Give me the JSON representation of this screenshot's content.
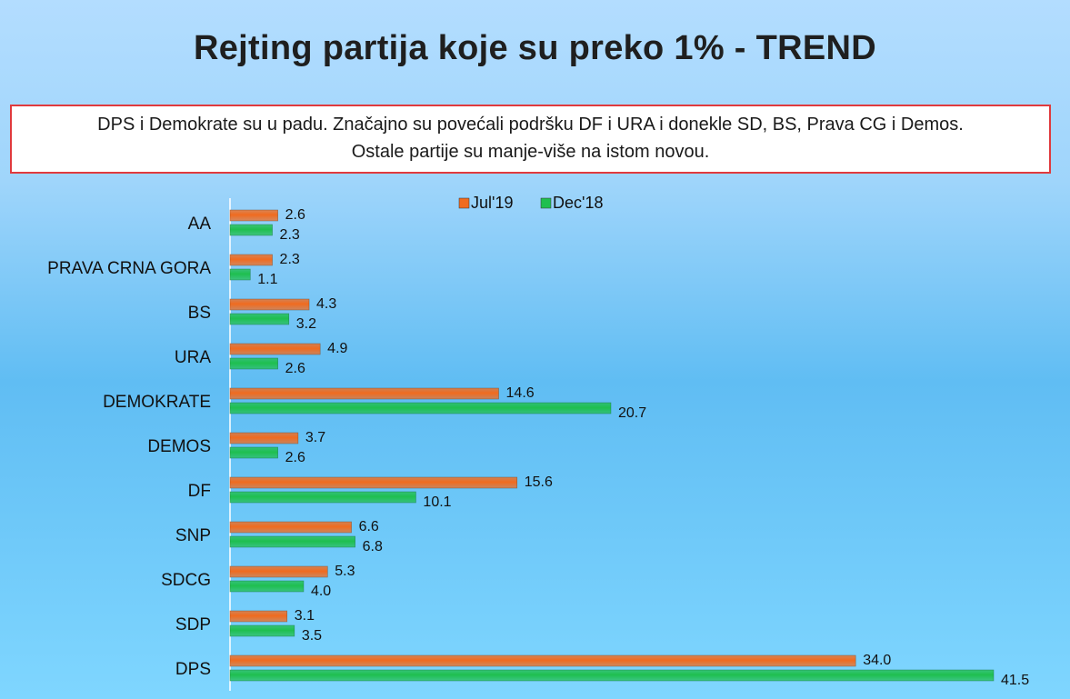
{
  "page": {
    "title": "Rejting partija koje su preko 1% - TREND",
    "note_line1": "DPS i Demokrate su u padu. Značajno su povećali podršku DF i URA i donekle SD, BS, Prava CG i Demos.",
    "note_line2": "Ostale partije su manje-više na istom novou."
  },
  "colors": {
    "jul19": "#f06b1f",
    "dec18": "#1fbf4f",
    "note_border": "#e03a3e"
  },
  "chart_data": {
    "type": "bar",
    "orientation": "horizontal",
    "categories": [
      "AA",
      "PRAVA CRNA GORA",
      "BS",
      "URA",
      "DEMOKRATE",
      "DEMOS",
      "DF",
      "SNP",
      "SDCG",
      "SDP",
      "DPS"
    ],
    "series": [
      {
        "name": "Jul'19",
        "values": [
          2.6,
          2.3,
          4.3,
          4.9,
          14.6,
          3.7,
          15.6,
          6.6,
          5.3,
          3.1,
          34.0
        ],
        "labels": [
          "2.6",
          "2.3",
          "4.3",
          "4.9",
          "14.6",
          "3.7",
          "15.6",
          "6.6",
          "5.3",
          "3.1",
          "34.0"
        ]
      },
      {
        "name": "Dec'18",
        "values": [
          2.3,
          1.1,
          3.2,
          2.6,
          20.7,
          2.6,
          10.1,
          6.8,
          4.0,
          3.5,
          41.5
        ],
        "labels": [
          "2.3",
          "1.1",
          "3.2",
          "2.6",
          "20.7",
          "2.6",
          "10.1",
          "6.8",
          "4.0",
          "3.5",
          "41.5"
        ]
      }
    ],
    "xlim": [
      0,
      41.5
    ],
    "legend_position": "top-center",
    "grid": false
  }
}
